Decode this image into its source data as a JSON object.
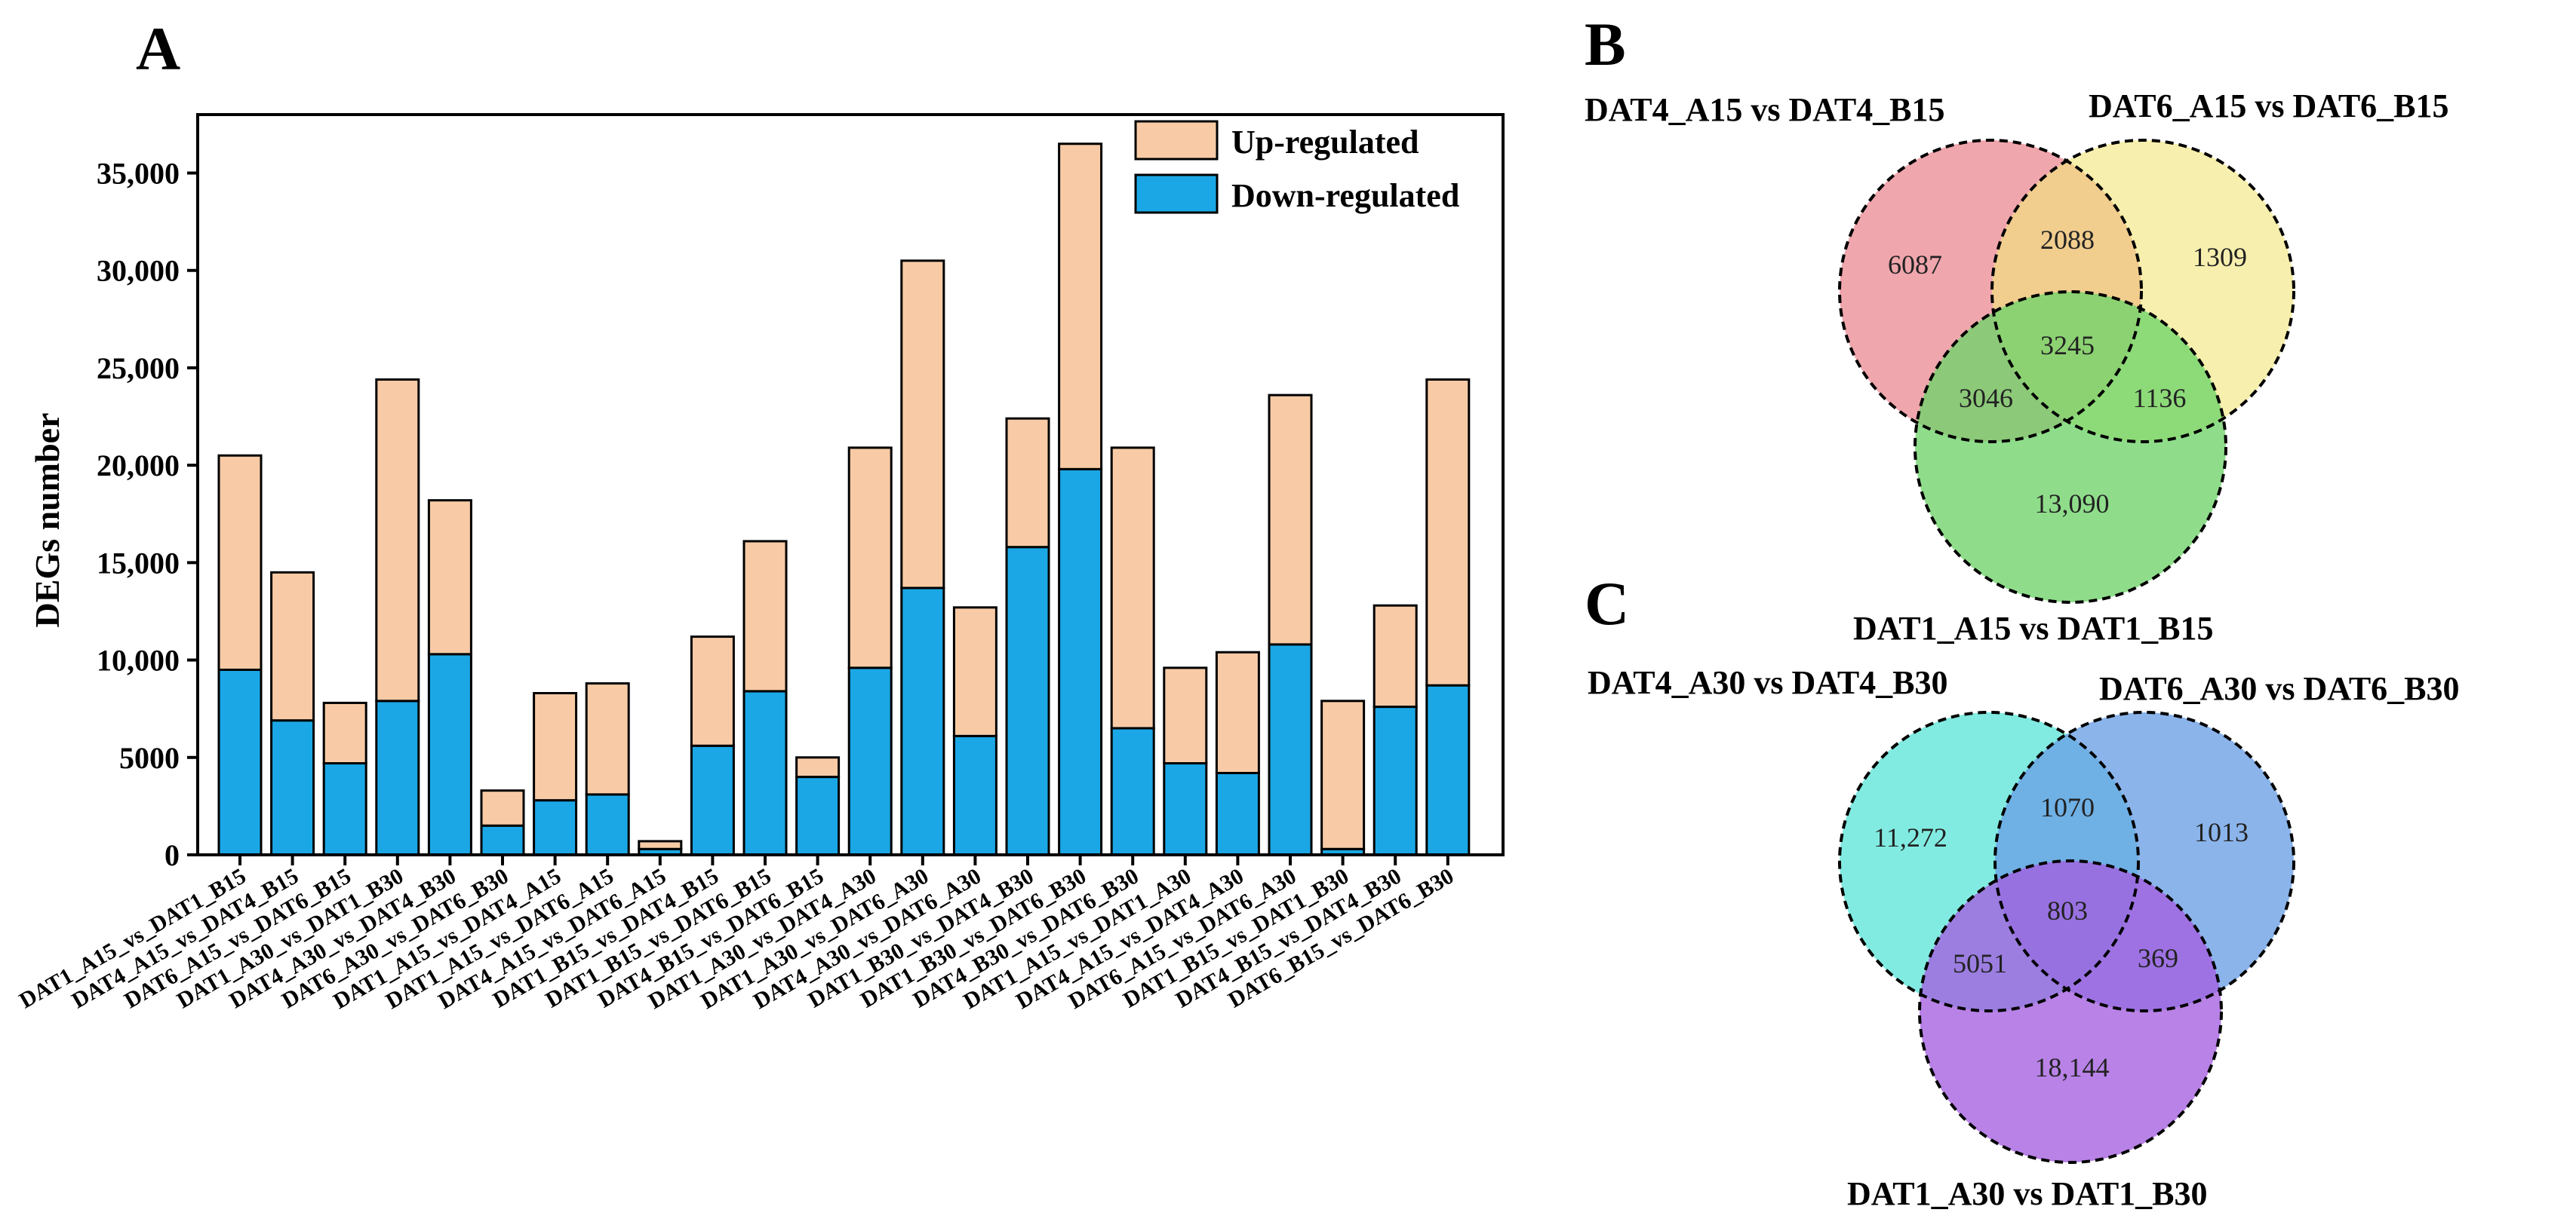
{
  "panels": {
    "A": "A",
    "B": "B",
    "C": "C"
  },
  "colors": {
    "up": "#f8cba6",
    "down": "#1ba7e5",
    "venn_b": [
      "#e66f7a",
      "#f2e57a",
      "#6fd46a"
    ],
    "venn_c": [
      "#5fe6d8",
      "#6a9fe6",
      "#a45fe0"
    ]
  },
  "chart_data": {
    "type": "bar",
    "stacked": true,
    "title": "",
    "xlabel": "",
    "ylabel": "DEGs number",
    "ylim": [
      0,
      38000
    ],
    "yticks": [
      0,
      5000,
      10000,
      15000,
      20000,
      25000,
      30000,
      35000
    ],
    "ytick_labels": [
      "0",
      "5000",
      "10,000",
      "15,000",
      "20,000",
      "25,000",
      "30,000",
      "35,000"
    ],
    "legend_position": "top-right",
    "categories": [
      "DAT1_A15_vs_DAT1_B15",
      "DAT4_A15_vs_DAT4_B15",
      "DAT6_A15_vs_DAT6_B15",
      "DAT1_A30_vs_DAT1_B30",
      "DAT4_A30_vs_DAT4_B30",
      "DAT6_A30_vs_DAT6_B30",
      "DAT1_A15_vs_DAT4_A15",
      "DAT1_A15_vs_DAT6_A15",
      "DAT4_A15_vs_DAT6_A15",
      "DAT1_B15_vs_DAT4_B15",
      "DAT1_B15_vs_DAT6_B15",
      "DAT4_B15_vs_DAT6_B15",
      "DAT1_A30_vs_DAT4_A30",
      "DAT1_A30_vs_DAT6_A30",
      "DAT4_A30_vs_DAT6_A30",
      "DAT1_B30_vs_DAT4_B30",
      "DAT1_B30_vs_DAT6_B30",
      "DAT4_B30_vs_DAT6_B30",
      "DAT1_A15_vs_DAT1_A30",
      "DAT4_A15_vs_DAT4_A30",
      "DAT6_A15_vs_DAT6_A30",
      "DAT1_B15_vs_DAT1_B30",
      "DAT4_B15_vs_DAT4_B30",
      "DAT6_B15_vs_DAT6_B30"
    ],
    "series": [
      {
        "name": "Down-regulated",
        "values": [
          9500,
          6900,
          4700,
          7900,
          10300,
          1500,
          2800,
          3100,
          300,
          5600,
          8400,
          4000,
          9600,
          13700,
          6100,
          15800,
          19800,
          6500,
          4700,
          4200,
          10800,
          300,
          7600,
          8700
        ]
      },
      {
        "name": "Up-regulated",
        "values": [
          11000,
          7600,
          3100,
          16500,
          7900,
          1800,
          5500,
          5700,
          400,
          5600,
          7700,
          1000,
          11300,
          16800,
          6600,
          6600,
          16700,
          14400,
          4900,
          6200,
          12800,
          7600,
          5200,
          15700
        ]
      }
    ]
  },
  "venn_b": {
    "set_labels": [
      "DAT4_A15 vs DAT4_B15",
      "DAT6_A15 vs DAT6_B15",
      "DAT1_A15 vs DAT1_B15"
    ],
    "regions": {
      "only_1": "6087",
      "only_2": "1309",
      "only_3": "13,090",
      "r12": "2088",
      "r13": "3046",
      "r23": "1136",
      "r123": "3245"
    }
  },
  "venn_c": {
    "set_labels": [
      "DAT4_A30 vs DAT4_B30",
      "DAT6_A30 vs DAT6_B30",
      "DAT1_A30 vs DAT1_B30"
    ],
    "regions": {
      "only_1": "11,272",
      "only_2": "1013",
      "only_3": "18,144",
      "r12": "1070",
      "r13": "5051",
      "r23": "369",
      "r123": "803"
    }
  }
}
